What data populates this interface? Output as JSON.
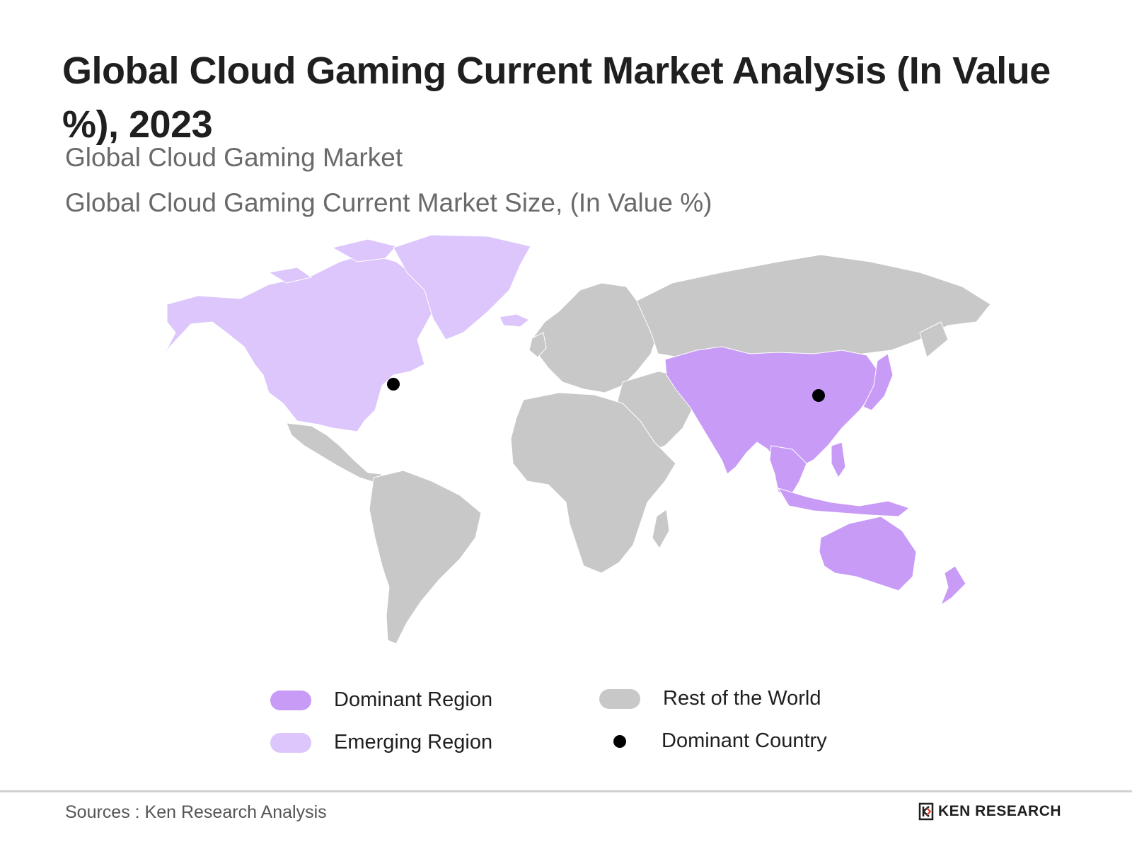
{
  "header": {
    "title": "Global Cloud Gaming Current Market Analysis (In Value %), 2023",
    "subtitle": "Global Cloud Gaming Market",
    "subtitle2": "Global Cloud Gaming Current Market Size, (In Value %)"
  },
  "colors": {
    "dominant_region": "#c89bf7",
    "emerging_region": "#dcc6fb",
    "rest_of_world": "#c8c8c8",
    "dominant_country": "#000000"
  },
  "map": {
    "dominant_regions": [
      "Asia-Pacific"
    ],
    "emerging_regions": [
      "North America"
    ],
    "dominant_countries": [
      "United States",
      "China"
    ]
  },
  "legend": {
    "dominant_region": "Dominant Region",
    "emerging_region": "Emerging Region",
    "rest_of_world": "Rest of the World",
    "dominant_country": "Dominant Country"
  },
  "footer": {
    "source": "Sources : Ken Research Analysis",
    "brand": "KEN RESEARCH"
  }
}
